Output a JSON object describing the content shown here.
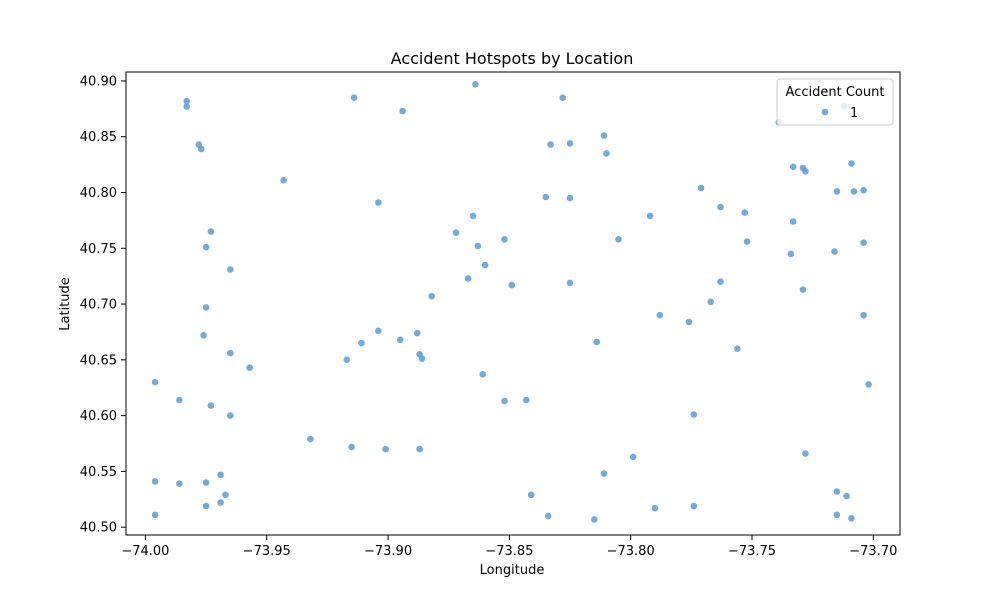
{
  "chart_data": {
    "type": "scatter",
    "title": "Accident Hotspots by Location",
    "xlabel": "Longitude",
    "ylabel": "Latitude",
    "xlim": [
      -74.008,
      -73.689
    ],
    "ylim": [
      40.493,
      40.908
    ],
    "xticks": [
      -74.0,
      -73.95,
      -73.9,
      -73.85,
      -73.8,
      -73.75,
      -73.7
    ],
    "xtick_labels": [
      "−74.00",
      "−73.95",
      "−73.90",
      "−73.85",
      "−73.80",
      "−73.75",
      "−73.70"
    ],
    "yticks": [
      40.5,
      40.55,
      40.6,
      40.65,
      40.7,
      40.75,
      40.8,
      40.85,
      40.9
    ],
    "ytick_labels": [
      "40.50",
      "40.55",
      "40.60",
      "40.65",
      "40.70",
      "40.75",
      "40.80",
      "40.85",
      "40.90"
    ],
    "grid": false,
    "legend": {
      "title": "Accident Count",
      "placement": "top-right",
      "entries": [
        "1"
      ]
    },
    "marker_color": "#5b9bd0",
    "series": [
      {
        "name": "1",
        "points": [
          [
            -73.983,
            40.882
          ],
          [
            -73.983,
            40.877
          ],
          [
            -73.914,
            40.885
          ],
          [
            -73.864,
            40.897
          ],
          [
            -73.828,
            40.885
          ],
          [
            -73.894,
            40.873
          ],
          [
            -73.978,
            40.843
          ],
          [
            -73.977,
            40.839
          ],
          [
            -73.811,
            40.851
          ],
          [
            -73.833,
            40.843
          ],
          [
            -73.825,
            40.844
          ],
          [
            -73.81,
            40.835
          ],
          [
            -73.739,
            40.863
          ],
          [
            -73.733,
            40.891
          ],
          [
            -73.712,
            40.877
          ],
          [
            -73.943,
            40.811
          ],
          [
            -73.733,
            40.823
          ],
          [
            -73.729,
            40.822
          ],
          [
            -73.728,
            40.819
          ],
          [
            -73.709,
            40.826
          ],
          [
            -73.771,
            40.804
          ],
          [
            -73.715,
            40.801
          ],
          [
            -73.708,
            40.801
          ],
          [
            -73.704,
            40.802
          ],
          [
            -73.904,
            40.791
          ],
          [
            -73.835,
            40.796
          ],
          [
            -73.825,
            40.795
          ],
          [
            -73.763,
            40.787
          ],
          [
            -73.753,
            40.782
          ],
          [
            -73.792,
            40.779
          ],
          [
            -73.865,
            40.779
          ],
          [
            -73.973,
            40.765
          ],
          [
            -73.872,
            40.764
          ],
          [
            -73.852,
            40.758
          ],
          [
            -73.805,
            40.758
          ],
          [
            -73.733,
            40.774
          ],
          [
            -73.975,
            40.751
          ],
          [
            -73.863,
            40.752
          ],
          [
            -73.752,
            40.756
          ],
          [
            -73.716,
            40.747
          ],
          [
            -73.734,
            40.745
          ],
          [
            -73.704,
            40.755
          ],
          [
            -73.965,
            40.731
          ],
          [
            -73.86,
            40.735
          ],
          [
            -73.867,
            40.723
          ],
          [
            -73.849,
            40.717
          ],
          [
            -73.825,
            40.719
          ],
          [
            -73.763,
            40.72
          ],
          [
            -73.882,
            40.707
          ],
          [
            -73.729,
            40.713
          ],
          [
            -73.975,
            40.697
          ],
          [
            -73.767,
            40.702
          ],
          [
            -73.788,
            40.69
          ],
          [
            -73.704,
            40.69
          ],
          [
            -73.776,
            40.684
          ],
          [
            -73.976,
            40.672
          ],
          [
            -73.904,
            40.676
          ],
          [
            -73.888,
            40.674
          ],
          [
            -73.895,
            40.668
          ],
          [
            -73.911,
            40.665
          ],
          [
            -73.814,
            40.666
          ],
          [
            -73.756,
            40.66
          ],
          [
            -73.965,
            40.656
          ],
          [
            -73.887,
            40.655
          ],
          [
            -73.917,
            40.65
          ],
          [
            -73.886,
            40.651
          ],
          [
            -73.957,
            40.643
          ],
          [
            -73.861,
            40.637
          ],
          [
            -73.996,
            40.63
          ],
          [
            -73.702,
            40.628
          ],
          [
            -73.986,
            40.614
          ],
          [
            -73.852,
            40.613
          ],
          [
            -73.843,
            40.614
          ],
          [
            -73.973,
            40.609
          ],
          [
            -73.965,
            40.6
          ],
          [
            -73.774,
            40.601
          ],
          [
            -73.932,
            40.579
          ],
          [
            -73.915,
            40.572
          ],
          [
            -73.901,
            40.57
          ],
          [
            -73.887,
            40.57
          ],
          [
            -73.728,
            40.566
          ],
          [
            -73.799,
            40.563
          ],
          [
            -73.811,
            40.548
          ],
          [
            -73.969,
            40.547
          ],
          [
            -73.996,
            40.541
          ],
          [
            -73.975,
            40.54
          ],
          [
            -73.986,
            40.539
          ],
          [
            -73.967,
            40.529
          ],
          [
            -73.841,
            40.529
          ],
          [
            -73.715,
            40.532
          ],
          [
            -73.711,
            40.528
          ],
          [
            -73.969,
            40.522
          ],
          [
            -73.975,
            40.519
          ],
          [
            -73.79,
            40.517
          ],
          [
            -73.774,
            40.519
          ],
          [
            -73.996,
            40.511
          ],
          [
            -73.834,
            40.51
          ],
          [
            -73.815,
            40.507
          ],
          [
            -73.715,
            40.511
          ],
          [
            -73.709,
            40.508
          ]
        ]
      }
    ]
  }
}
